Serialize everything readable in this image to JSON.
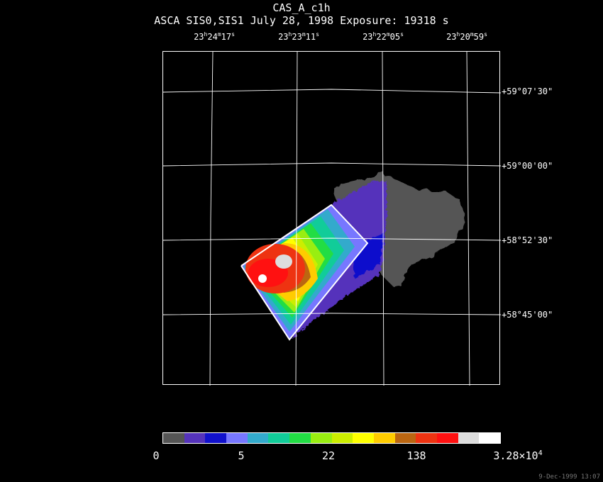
{
  "title": "CAS_A_c1h",
  "subtitle": "ASCA SIS0,SIS1 July 28, 1998 Exposure: 19318 s",
  "ra_labels": [
    {
      "h": "23",
      "m": "24",
      "s": "17"
    },
    {
      "h": "23",
      "m": "23",
      "s": "11"
    },
    {
      "h": "23",
      "m": "22",
      "s": "05"
    },
    {
      "h": "23",
      "m": "20",
      "s": "59"
    }
  ],
  "dec_labels": [
    "+59°07'30\"",
    "+59°00'00\"",
    "+58°52'30\"",
    "+58°45'00\""
  ],
  "colorbar": {
    "colors": [
      "#555555",
      "#5533bb",
      "#1111cc",
      "#7777ff",
      "#33aacc",
      "#11cc99",
      "#22dd44",
      "#99ee11",
      "#ccee00",
      "#ffff00",
      "#ffcc00",
      "#bb6611",
      "#ee3311",
      "#ff1111",
      "#dddddd",
      "#ffffff"
    ],
    "labels": [
      "0",
      "5",
      "22",
      "138"
    ],
    "max_label_base": "3.28×10",
    "max_label_exp": "4"
  },
  "timestamp": "9-Dec-1999 13:07"
}
